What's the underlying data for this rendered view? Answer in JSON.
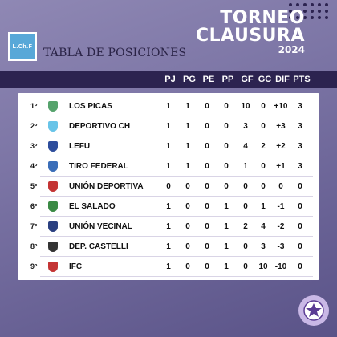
{
  "header": {
    "logo_text": "L.Ch.F",
    "title": "TABLA DE POSICIONES",
    "tournament_line1": "TORNEO",
    "tournament_line2": "CLAUSURA",
    "tournament_year": "2024"
  },
  "columns": [
    "PJ",
    "PG",
    "PE",
    "PP",
    "GF",
    "GC",
    "DIF",
    "PTS"
  ],
  "rows": [
    {
      "pos": "1º",
      "team": "LOS PICAS",
      "shield_color": "#56a36c",
      "stats": [
        "1",
        "1",
        "0",
        "0",
        "10",
        "0",
        "+10",
        "3"
      ]
    },
    {
      "pos": "2º",
      "team": "DEPORTIVO CH",
      "shield_color": "#68c4e8",
      "stats": [
        "1",
        "1",
        "0",
        "0",
        "3",
        "0",
        "+3",
        "3"
      ]
    },
    {
      "pos": "3º",
      "team": "LEFU",
      "shield_color": "#2d4d9c",
      "stats": [
        "1",
        "1",
        "0",
        "0",
        "4",
        "2",
        "+2",
        "3"
      ]
    },
    {
      "pos": "4º",
      "team": "TIRO FEDERAL",
      "shield_color": "#3a6db8",
      "stats": [
        "1",
        "1",
        "0",
        "0",
        "1",
        "0",
        "+1",
        "3"
      ]
    },
    {
      "pos": "5º",
      "team": "UNIÓN DEPORTIVA",
      "shield_color": "#c43434",
      "stats": [
        "0",
        "0",
        "0",
        "0",
        "0",
        "0",
        "0",
        "0"
      ]
    },
    {
      "pos": "6º",
      "team": "EL SALADO",
      "shield_color": "#3a8a44",
      "stats": [
        "1",
        "0",
        "0",
        "1",
        "0",
        "1",
        "-1",
        "0"
      ]
    },
    {
      "pos": "7º",
      "team": "UNIÓN VECINAL",
      "shield_color": "#2a3f80",
      "stats": [
        "1",
        "0",
        "0",
        "1",
        "2",
        "4",
        "-2",
        "0"
      ]
    },
    {
      "pos": "8º",
      "team": "DEP. CASTELLI",
      "shield_color": "#333333",
      "stats": [
        "1",
        "0",
        "0",
        "1",
        "0",
        "3",
        "-3",
        "0"
      ]
    },
    {
      "pos": "9º",
      "team": "IFC",
      "shield_color": "#c43434",
      "stats": [
        "1",
        "0",
        "0",
        "1",
        "0",
        "10",
        "-10",
        "0"
      ]
    }
  ],
  "colors": {
    "header_bar": "#2c2350",
    "background": "#7d76a6",
    "panel": "#ffffff"
  }
}
